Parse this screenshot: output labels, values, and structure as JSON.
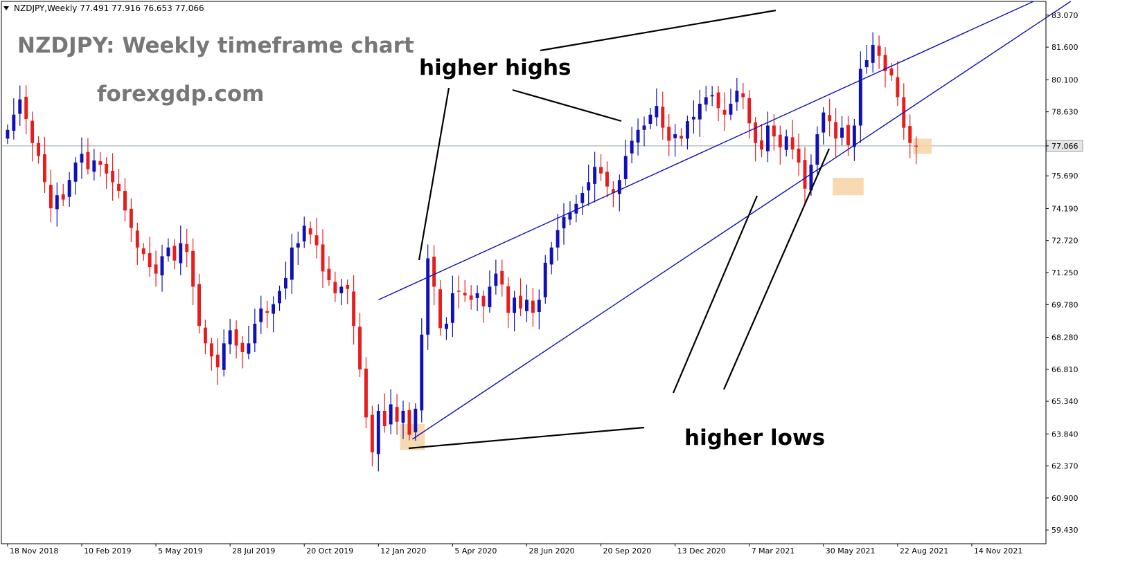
{
  "header": {
    "symbol_line": "NZDJPY,Weekly  77.491 77.916 76.653 77.066"
  },
  "title": "NZDJPY: Weekly timeframe chart",
  "website": "forexgdp.com",
  "annotations": {
    "higher_highs": "higher highs",
    "higher_lows": "higher lows"
  },
  "colors": {
    "bull": "#1010b8",
    "bear": "#e81c1c",
    "channel": "#0d0dbf",
    "price_line": "#8fa2ae",
    "highlight": "#f7d3a4"
  },
  "chart_data": {
    "type": "candlestick",
    "timeframe": "Weekly",
    "current_price": 77.066,
    "current_price_label": "77.066",
    "ylim": [
      58.8,
      83.7
    ],
    "y_ticks": [
      "83.070",
      "81.600",
      "80.100",
      "78.630",
      "77.066",
      "75.690",
      "74.190",
      "72.720",
      "71.250",
      "69.780",
      "68.280",
      "66.810",
      "65.340",
      "63.840",
      "62.370",
      "60.900",
      "59.430"
    ],
    "x_ticks": [
      {
        "label": "18 Nov 2018",
        "index": 0
      },
      {
        "label": "10 Feb 2019",
        "index": 12
      },
      {
        "label": "5 May 2019",
        "index": 24
      },
      {
        "label": "28 Jul 2019",
        "index": 36
      },
      {
        "label": "20 Oct 2019",
        "index": 48
      },
      {
        "label": "12 Jan 2020",
        "index": 60
      },
      {
        "label": "5 Apr 2020",
        "index": 72
      },
      {
        "label": "28 Jun 2020",
        "index": 84
      },
      {
        "label": "20 Sep 2020",
        "index": 96
      },
      {
        "label": "13 Dec 2020",
        "index": 108
      },
      {
        "label": "7 Mar 2021",
        "index": 120
      },
      {
        "label": "30 May 2021",
        "index": 132
      },
      {
        "label": "22 Aug 2021",
        "index": 144
      },
      {
        "label": "14 Nov 2021",
        "index": 156
      }
    ],
    "close_path": [
      77.8,
      78.5,
      79.2,
      78.3,
      77.2,
      76.6,
      75.4,
      74.2,
      74.8,
      74.6,
      75.5,
      76.3,
      76.7,
      76.0,
      76.4,
      76.2,
      75.8,
      75.4,
      75.0,
      74.1,
      73.3,
      72.4,
      72.1,
      71.5,
      71.2,
      72.0,
      72.4,
      71.8,
      72.6,
      72.2,
      70.6,
      68.8,
      68.0,
      67.4,
      66.9,
      68.0,
      68.6,
      67.9,
      67.6,
      68.0,
      68.9,
      69.6,
      69.4,
      69.8,
      70.4,
      71.0,
      72.4,
      72.6,
      73.4,
      73.0,
      72.5,
      71.3,
      70.9,
      70.3,
      70.6,
      70.5,
      68.8,
      66.8,
      64.6,
      63.0,
      64.9,
      64.2,
      65.2,
      64.4,
      64.9,
      63.8,
      65.0,
      68.4,
      71.9,
      70.6,
      68.7,
      68.9,
      70.3,
      70.4,
      70.2,
      70.0,
      70.3,
      69.7,
      70.6,
      71.2,
      70.7,
      69.4,
      70.1,
      69.6,
      70.0,
      69.4,
      70.0,
      71.7,
      72.4,
      73.2,
      73.8,
      74.0,
      74.4,
      74.9,
      75.4,
      76.1,
      75.8,
      75.2,
      74.9,
      75.5,
      76.6,
      77.3,
      77.8,
      78.0,
      78.5,
      78.9,
      77.9,
      77.3,
      77.6,
      77.4,
      78.2,
      78.4,
      79.0,
      79.3,
      79.4,
      78.8,
      78.5,
      79.0,
      79.6,
      79.3,
      78.1,
      77.2,
      76.9,
      78.0,
      77.5,
      77.0,
      77.5,
      76.9,
      76.3,
      75.1,
      76.2,
      77.6,
      78.6,
      78.2,
      77.4,
      77.9,
      77.1,
      78.0,
      80.6,
      81.0,
      81.7,
      81.2,
      80.5,
      80.3,
      79.3,
      77.9,
      77.2,
      77.066
    ],
    "x_range": [
      -1,
      168
    ],
    "trendlines": [
      {
        "name": "upper channel",
        "from": [
          60,
          70.0
        ],
        "to": [
          166,
          83.7
        ]
      },
      {
        "name": "lower channel",
        "from": [
          65.5,
          63.6
        ],
        "to": [
          172,
          83.7
        ]
      },
      {
        "name": "current price",
        "from": [
          -1,
          77.066
        ],
        "to": [
          168,
          77.066
        ]
      }
    ],
    "highlights": [
      {
        "x": [
          63.5,
          67.5
        ],
        "y": [
          63.1,
          64.3
        ]
      },
      {
        "x": [
          133.5,
          138.5
        ],
        "y": [
          74.8,
          75.6
        ]
      },
      {
        "x": [
          146.5,
          149.5
        ],
        "y": [
          76.7,
          77.4
        ]
      }
    ]
  }
}
